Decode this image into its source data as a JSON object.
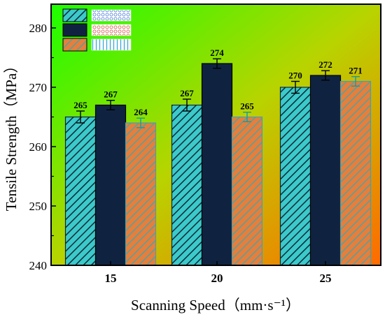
{
  "chart_data": {
    "type": "bar",
    "xlabel": "Scanning Speed（mm·s⁻¹）",
    "ylabel": "Tensile Strength（MPa）",
    "ylim": [
      240,
      284
    ],
    "yticks": [
      240,
      250,
      260,
      270,
      280
    ],
    "categories": [
      "15",
      "20",
      "25"
    ],
    "series": [
      {
        "values": [
          265,
          267,
          270
        ],
        "errors": [
          1.0,
          1.0,
          1.0
        ],
        "pattern": "hatch-cyan",
        "fill": "#40c8c8",
        "stroke": "#0a2a3a"
      },
      {
        "values": [
          267,
          274,
          272
        ],
        "errors": [
          0.8,
          0.8,
          0.8
        ],
        "pattern": "solid-navy",
        "fill": "#0f2340",
        "stroke": "#000000"
      },
      {
        "values": [
          264,
          265,
          271
        ],
        "errors": [
          0.8,
          0.8,
          0.8
        ],
        "pattern": "hatch-orange",
        "fill": "#e07a3a",
        "stroke": "#4aa0a8"
      }
    ],
    "legend_placement": "top-left",
    "background_gradient": [
      "#22ff00",
      "#ff7a00"
    ],
    "grid": false
  }
}
